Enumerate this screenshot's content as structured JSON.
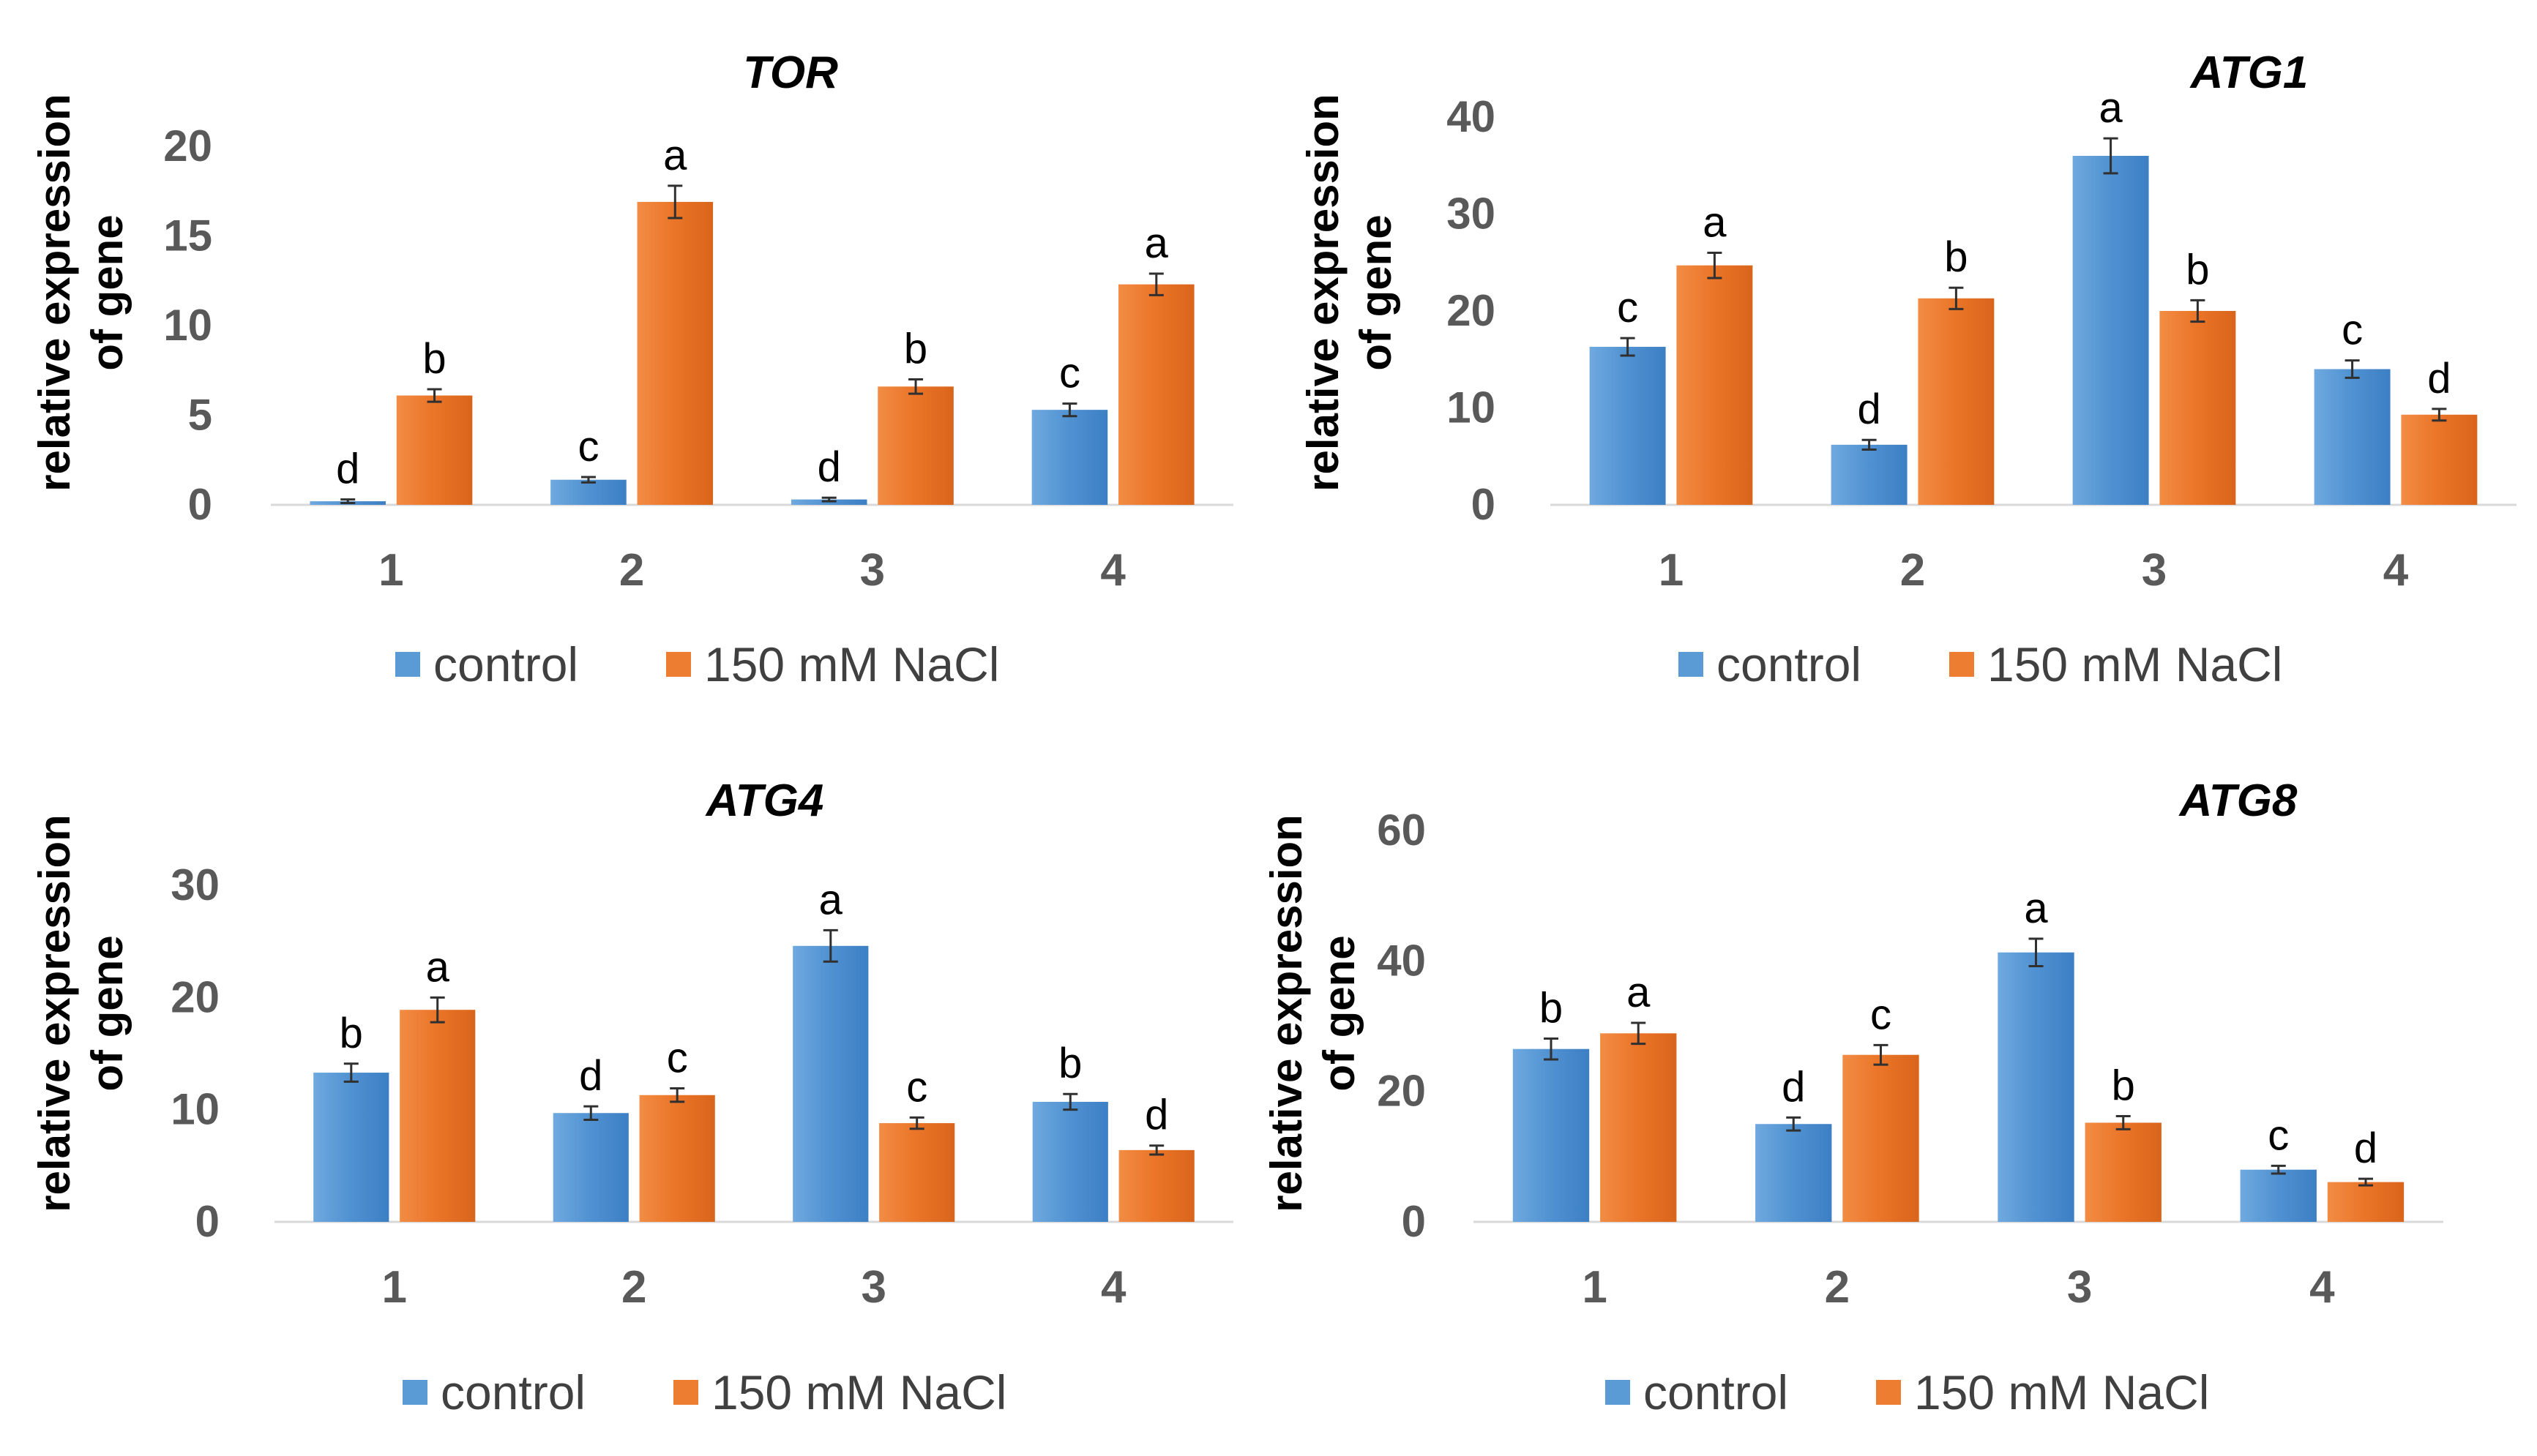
{
  "colors": {
    "control": "#5b9bd5",
    "nacl": "#ed7d31"
  },
  "chart_data": [
    {
      "type": "bar",
      "title": "TOR",
      "ylabel": [
        "relative expression",
        "of gene"
      ],
      "categories": [
        "1",
        "2",
        "3",
        "4"
      ],
      "ylim": [
        0,
        20
      ],
      "yticks": [
        "0",
        "5",
        "10",
        "15",
        "20"
      ],
      "series": [
        {
          "name": "control",
          "values": [
            0.2,
            1.4,
            0.3,
            5.3
          ],
          "errors": [
            0.1,
            0.15,
            0.1,
            0.35
          ],
          "letters": [
            "d",
            "c",
            "d",
            "c"
          ]
        },
        {
          "name": "150 mM NaCl",
          "values": [
            6.1,
            16.9,
            6.6,
            12.3
          ],
          "errors": [
            0.35,
            0.9,
            0.4,
            0.6
          ],
          "letters": [
            "b",
            "a",
            "b",
            "a"
          ]
        }
      ]
    },
    {
      "type": "bar",
      "title": "ATG1",
      "ylabel": [
        "relative expression",
        "of gene"
      ],
      "categories": [
        "1",
        "2",
        "3",
        "4"
      ],
      "ylim": [
        0,
        40
      ],
      "yticks": [
        "0",
        "10",
        "20",
        "30",
        "40"
      ],
      "series": [
        {
          "name": "control",
          "values": [
            16.3,
            6.2,
            36.0,
            14.0
          ],
          "errors": [
            0.9,
            0.5,
            1.8,
            0.9
          ],
          "letters": [
            "c",
            "d",
            "a",
            "c"
          ]
        },
        {
          "name": "150 mM NaCl",
          "values": [
            24.7,
            21.3,
            20.0,
            9.3
          ],
          "errors": [
            1.3,
            1.1,
            1.1,
            0.6
          ],
          "letters": [
            "a",
            "b",
            "b",
            "d"
          ]
        }
      ]
    },
    {
      "type": "bar",
      "title": "ATG4",
      "ylabel": [
        "relative expression",
        "of gene"
      ],
      "categories": [
        "1",
        "2",
        "3",
        "4"
      ],
      "ylim": [
        0,
        30
      ],
      "yticks": [
        "0",
        "10",
        "20",
        "30"
      ],
      "series": [
        {
          "name": "control",
          "values": [
            13.3,
            9.7,
            24.6,
            10.7
          ],
          "errors": [
            0.8,
            0.6,
            1.4,
            0.7
          ],
          "letters": [
            "b",
            "d",
            "a",
            "b"
          ]
        },
        {
          "name": "150 mM NaCl",
          "values": [
            18.9,
            11.3,
            8.8,
            6.4
          ],
          "errors": [
            1.1,
            0.6,
            0.5,
            0.4
          ],
          "letters": [
            "a",
            "c",
            "c",
            "d"
          ]
        }
      ]
    },
    {
      "type": "bar",
      "title": "ATG8",
      "ylabel": [
        "relative expression",
        "of gene"
      ],
      "categories": [
        "1",
        "2",
        "3",
        "4"
      ],
      "ylim": [
        0,
        60
      ],
      "yticks": [
        "0",
        "20",
        "40",
        "60"
      ],
      "series": [
        {
          "name": "control",
          "values": [
            26.5,
            15.0,
            41.3,
            8.0
          ],
          "errors": [
            1.6,
            1.0,
            2.1,
            0.6
          ],
          "letters": [
            "b",
            "d",
            "a",
            "c"
          ]
        },
        {
          "name": "150 mM NaCl",
          "values": [
            28.9,
            25.6,
            15.2,
            6.1
          ],
          "errors": [
            1.6,
            1.5,
            1.0,
            0.5
          ],
          "letters": [
            "a",
            "c",
            "b",
            "d"
          ]
        }
      ]
    }
  ]
}
